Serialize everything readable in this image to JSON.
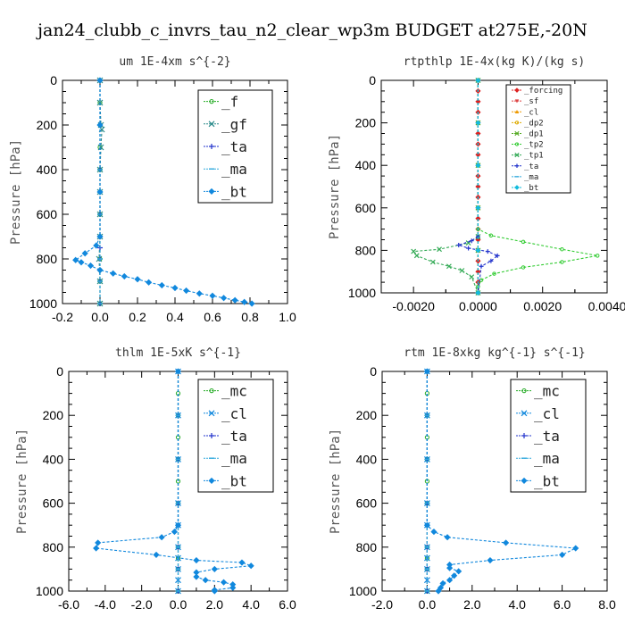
{
  "title": "jan24_clubb_c_invrs_tau_n2_clear_wp3m  BUDGET at275E,-20N",
  "chart_data": [
    {
      "type": "line",
      "title": "um  1E-4xm s^{-2}",
      "ylabel": "Pressure [hPa]",
      "xlim": [
        -0.2,
        1.0
      ],
      "ylim": [
        1000,
        0
      ],
      "xticks": [
        "-0.2",
        "0.0",
        "0.2",
        "0.4",
        "0.6",
        "0.8",
        "1.0"
      ],
      "yticks": [
        "0",
        "200",
        "400",
        "600",
        "800",
        "1000"
      ],
      "legend_size": "large",
      "series": [
        {
          "name": "_f",
          "color": "#22aa22",
          "marker": "circle",
          "x": [
            0,
            0,
            0,
            0,
            0,
            0,
            0,
            0,
            0,
            0,
            0,
            0
          ],
          "y": [
            0,
            100,
            200,
            300,
            400,
            500,
            600,
            700,
            800,
            850,
            900,
            1000
          ]
        },
        {
          "name": "_gf",
          "color": "#2a8a8a",
          "marker": "x",
          "x": [
            0,
            0,
            0.005,
            0.01,
            0.005,
            0,
            0,
            0,
            0,
            -0.005,
            0,
            0
          ],
          "y": [
            0,
            100,
            200,
            220,
            300,
            400,
            500,
            600,
            700,
            800,
            900,
            1000
          ]
        },
        {
          "name": "_ta",
          "color": "#2233cc",
          "marker": "plus",
          "x": [
            0,
            0,
            0,
            0,
            0,
            0,
            0,
            0,
            0,
            0
          ],
          "y": [
            0,
            200,
            400,
            600,
            700,
            750,
            800,
            850,
            900,
            1000
          ]
        },
        {
          "name": "_ma",
          "color": "#33aadd",
          "marker": "dash",
          "x": [
            0,
            0,
            0,
            0,
            0,
            0,
            0
          ],
          "y": [
            0,
            200,
            400,
            600,
            800,
            900,
            1000
          ]
        },
        {
          "name": "_bt",
          "color": "#1188dd",
          "marker": "diamond",
          "x": [
            0,
            0,
            0,
            0,
            -0.02,
            -0.08,
            -0.13,
            -0.1,
            -0.05,
            0,
            0.07,
            0.13,
            0.2,
            0.26,
            0.33,
            0.4,
            0.46,
            0.53,
            0.6,
            0.66,
            0.72,
            0.77,
            0.81
          ],
          "y": [
            0,
            200,
            500,
            700,
            740,
            775,
            805,
            815,
            830,
            850,
            865,
            878,
            891,
            905,
            918,
            930,
            942,
            955,
            965,
            975,
            985,
            993,
            1000
          ]
        }
      ]
    },
    {
      "type": "line",
      "title": "rtpthlp  1E-4x(kg K)/(kg s)",
      "ylabel": "Pressure [hPa]",
      "xlim": [
        -0.003,
        0.004
      ],
      "ylim": [
        1000,
        0
      ],
      "xticks": [
        "-0.0020",
        "0.0000",
        "0.0020",
        "0.0040"
      ],
      "xtick_values": [
        -0.002,
        0,
        0.002,
        0.004
      ],
      "yticks": [
        "0",
        "200",
        "400",
        "600",
        "800",
        "1000"
      ],
      "legend_size": "small",
      "series": [
        {
          "name": "_forcing",
          "color": "#dd2222",
          "marker": "diamond",
          "x": [
            0,
            0,
            0,
            0,
            0,
            0,
            0,
            0,
            0,
            0,
            0,
            0,
            0,
            0,
            0,
            0,
            0,
            0,
            0,
            0,
            0
          ],
          "y": [
            0,
            50,
            100,
            150,
            200,
            250,
            300,
            350,
            400,
            450,
            500,
            550,
            600,
            650,
            700,
            750,
            800,
            850,
            900,
            950,
            1000
          ]
        },
        {
          "name": "_sf",
          "color": "#dd4444",
          "marker": "triangle-down",
          "x": [
            0,
            0,
            0,
            0,
            0,
            0
          ],
          "y": [
            0,
            200,
            400,
            600,
            800,
            1000
          ]
        },
        {
          "name": "_cl",
          "color": "#ee9900",
          "marker": "triangle",
          "x": [
            0,
            0,
            0,
            0,
            0,
            0
          ],
          "y": [
            0,
            200,
            400,
            600,
            800,
            1000
          ]
        },
        {
          "name": "_dp2",
          "color": "#ddaa00",
          "marker": "circle",
          "x": [
            0,
            0,
            0,
            0,
            0,
            0
          ],
          "y": [
            0,
            200,
            400,
            600,
            800,
            1000
          ]
        },
        {
          "name": "_dp1",
          "color": "#55aa22",
          "marker": "x",
          "x": [
            0,
            0,
            0,
            0,
            0,
            0
          ],
          "y": [
            0,
            200,
            400,
            600,
            800,
            1000
          ]
        },
        {
          "name": "_tp2",
          "color": "#33cc33",
          "marker": "circle",
          "x": [
            0,
            0,
            0.0004,
            0.0014,
            0.0026,
            0.0037,
            0.0026,
            0.0014,
            0.0005,
            0.0001,
            0,
            0
          ],
          "y": [
            0,
            700,
            730,
            760,
            795,
            825,
            855,
            880,
            910,
            940,
            970,
            1000
          ]
        },
        {
          "name": "_tp1",
          "color": "#33aa55",
          "marker": "x",
          "x": [
            0,
            0,
            -0.0003,
            -0.0012,
            -0.002,
            -0.0019,
            -0.0014,
            -0.0009,
            -0.0005,
            -0.0002,
            0
          ],
          "y": [
            0,
            735,
            765,
            795,
            805,
            825,
            855,
            875,
            895,
            925,
            1000
          ]
        },
        {
          "name": "_ta",
          "color": "#2233cc",
          "marker": "plus",
          "x": [
            0,
            0,
            -0.0002,
            -0.0006,
            -0.0003,
            0.0003,
            0.0006,
            0.0004,
            0.0001,
            0
          ],
          "y": [
            0,
            735,
            755,
            775,
            790,
            805,
            825,
            850,
            875,
            1000
          ]
        },
        {
          "name": "_ma",
          "color": "#33aadd",
          "marker": "dash",
          "x": [
            0,
            0,
            0,
            0,
            0,
            0
          ],
          "y": [
            0,
            200,
            400,
            600,
            800,
            1000
          ]
        },
        {
          "name": "_bt",
          "color": "#11bbdd",
          "marker": "diamond",
          "x": [
            0,
            0,
            0,
            0,
            0,
            0
          ],
          "y": [
            0,
            200,
            400,
            600,
            800,
            1000
          ]
        }
      ]
    },
    {
      "type": "line",
      "title": "thlm  1E-5xK s^{-1}",
      "ylabel": "Pressure [hPa]",
      "xlim": [
        -6.0,
        6.0
      ],
      "ylim": [
        1000,
        0
      ],
      "xticks": [
        "-6.0",
        "-4.0",
        "-2.0",
        "0.0",
        "2.0",
        "4.0",
        "6.0"
      ],
      "yticks": [
        "0",
        "200",
        "400",
        "600",
        "800",
        "1000"
      ],
      "legend_size": "large",
      "series": [
        {
          "name": "_mc",
          "color": "#22aa22",
          "marker": "circle",
          "x": [
            0,
            0,
            0,
            0,
            0,
            0,
            0,
            0,
            0,
            0,
            0,
            0
          ],
          "y": [
            0,
            100,
            200,
            300,
            400,
            500,
            600,
            700,
            800,
            850,
            900,
            1000
          ]
        },
        {
          "name": "_cl",
          "color": "#1188dd",
          "marker": "x",
          "x": [
            0,
            0,
            0,
            0,
            0,
            0,
            0,
            0,
            0,
            0
          ],
          "y": [
            0,
            200,
            400,
            600,
            700,
            800,
            850,
            900,
            950,
            1000
          ]
        },
        {
          "name": "_ta",
          "color": "#2233cc",
          "marker": "plus",
          "x": [
            0,
            0,
            0,
            0,
            0,
            0,
            0
          ],
          "y": [
            0,
            200,
            400,
            600,
            800,
            900,
            1000
          ]
        },
        {
          "name": "_ma",
          "color": "#33aadd",
          "marker": "dash",
          "x": [
            0,
            0,
            0,
            0,
            0,
            0,
            0
          ],
          "y": [
            0,
            200,
            400,
            600,
            800,
            900,
            1000
          ]
        },
        {
          "name": "_bt",
          "color": "#1188dd",
          "marker": "diamond",
          "x": [
            0,
            0,
            -0.2,
            -0.9,
            -4.4,
            -4.5,
            -1.2,
            1.0,
            3.5,
            4.0,
            2.0,
            1.0,
            1.0,
            1.5,
            2.5,
            3.0,
            3.0,
            2.0,
            2.0
          ],
          "y": [
            0,
            700,
            730,
            755,
            780,
            805,
            835,
            860,
            870,
            885,
            900,
            915,
            935,
            950,
            960,
            970,
            985,
            995,
            1000
          ]
        }
      ]
    },
    {
      "type": "line",
      "title": "rtm  1E-8xkg kg^{-1} s^{-1}",
      "ylabel": "Pressure [hPa]",
      "xlim": [
        -2.0,
        8.0
      ],
      "ylim": [
        1000,
        0
      ],
      "xticks": [
        "-2.0",
        "0.0",
        "2.0",
        "4.0",
        "6.0",
        "8.0"
      ],
      "yticks": [
        "0",
        "200",
        "400",
        "600",
        "800",
        "1000"
      ],
      "legend_size": "large",
      "series": [
        {
          "name": "_mc",
          "color": "#22aa22",
          "marker": "circle",
          "x": [
            0,
            0,
            0,
            0,
            0,
            0,
            0,
            0,
            0,
            0,
            0,
            0
          ],
          "y": [
            0,
            100,
            200,
            300,
            400,
            500,
            600,
            700,
            800,
            850,
            900,
            1000
          ]
        },
        {
          "name": "_cl",
          "color": "#1188dd",
          "marker": "x",
          "x": [
            0,
            0,
            0,
            0,
            0,
            0,
            0,
            0,
            0,
            0
          ],
          "y": [
            0,
            200,
            400,
            600,
            700,
            800,
            850,
            900,
            950,
            1000
          ]
        },
        {
          "name": "_ta",
          "color": "#2233cc",
          "marker": "plus",
          "x": [
            0,
            0,
            0,
            0,
            0,
            0,
            0
          ],
          "y": [
            0,
            200,
            400,
            600,
            800,
            900,
            1000
          ]
        },
        {
          "name": "_ma",
          "color": "#33aadd",
          "marker": "dash",
          "x": [
            0,
            0,
            0,
            0,
            0,
            0,
            0
          ],
          "y": [
            0,
            200,
            400,
            600,
            800,
            900,
            1000
          ]
        },
        {
          "name": "_bt",
          "color": "#1188dd",
          "marker": "diamond",
          "x": [
            0,
            0,
            0.3,
            0.9,
            3.5,
            6.6,
            6.0,
            2.8,
            1.0,
            1.0,
            1.4,
            1.2,
            1.0,
            0.7,
            0.6,
            0.5
          ],
          "y": [
            0,
            700,
            730,
            755,
            780,
            805,
            835,
            860,
            880,
            895,
            910,
            930,
            950,
            965,
            985,
            1000
          ]
        }
      ]
    }
  ]
}
